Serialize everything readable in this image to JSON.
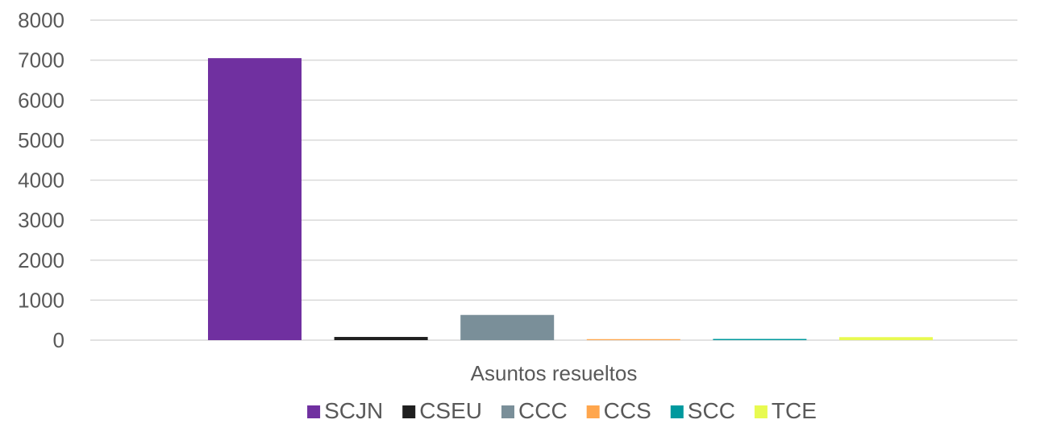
{
  "chart_data": {
    "type": "bar",
    "categories": [
      "Asuntos resueltos"
    ],
    "series": [
      {
        "name": "SCJN",
        "values": [
          7050
        ],
        "color": "#7030A0"
      },
      {
        "name": "CSEU",
        "values": [
          80
        ],
        "color": "#1F1F1F"
      },
      {
        "name": "CCC",
        "values": [
          630
        ],
        "color": "#7A8F99"
      },
      {
        "name": "CCS",
        "values": [
          25
        ],
        "color": "#FFA64D"
      },
      {
        "name": "SCC",
        "values": [
          30
        ],
        "color": "#00999E"
      },
      {
        "name": "TCE",
        "values": [
          75
        ],
        "color": "#E8FA50"
      }
    ],
    "yticks": [
      "0",
      "1000",
      "2000",
      "3000",
      "4000",
      "5000",
      "6000",
      "7000",
      "8000"
    ],
    "ylim": [
      0,
      8000
    ],
    "grid": true,
    "legend": "bottom"
  }
}
